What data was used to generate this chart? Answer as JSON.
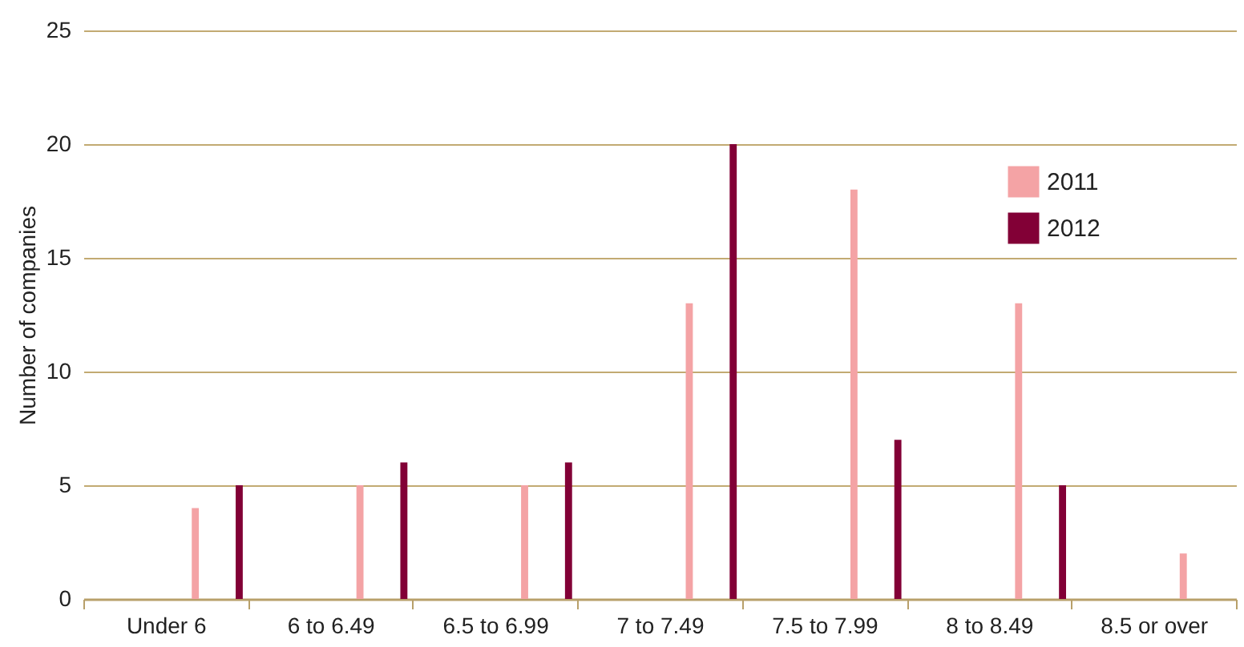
{
  "chart_data": {
    "type": "bar",
    "ylabel": "Number of companies",
    "categories": [
      "Under 6",
      "6 to 6.49",
      "6.5 to 6.99",
      "7 to 7.49",
      "7.5 to 7.99",
      "8 to 8.49",
      "8.5 or over"
    ],
    "series": [
      {
        "name": "2011",
        "color": "#f4a3a5",
        "values": [
          4,
          5,
          5,
          13,
          18,
          13,
          2
        ]
      },
      {
        "name": "2012",
        "color": "#820036",
        "values": [
          5,
          6,
          6,
          20,
          7,
          5,
          null
        ]
      }
    ],
    "ylim": [
      0,
      25
    ],
    "yticks": [
      0,
      5,
      10,
      15,
      20,
      25
    ],
    "grid": "y",
    "legend": "top right"
  }
}
